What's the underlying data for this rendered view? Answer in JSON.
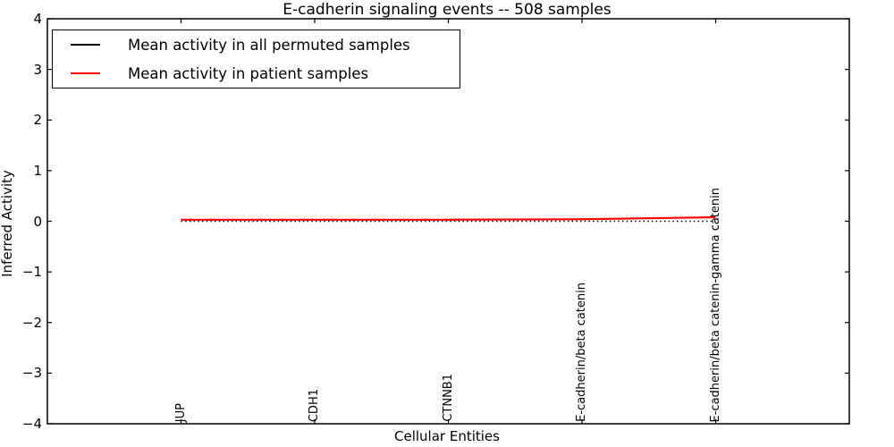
{
  "figure": {
    "background": "#ffffff",
    "axis_color": "#000000"
  },
  "chart_data": {
    "type": "line",
    "title": "E-cadherin signaling events -- 508 samples",
    "xlabel": "Cellular Entities",
    "ylabel": "Inferred Activity",
    "ylim": [
      -4,
      4
    ],
    "yticks": [
      4,
      3,
      2,
      1,
      0,
      -1,
      -2,
      -3,
      -4
    ],
    "grid": false,
    "legend_position": "upper left",
    "categories": [
      "JUP",
      "CDH1",
      "CTNNB1",
      "E-cadherin/beta catenin",
      "E-cadherin/beta catenin-gamma catenin"
    ],
    "series": [
      {
        "name": "Mean activity in all permuted samples",
        "color": "#000000",
        "style": "dotted",
        "values": [
          0.0,
          0.0,
          0.0,
          0.0,
          0.0
        ]
      },
      {
        "name": "Mean activity in patient samples",
        "color": "#ff0000",
        "style": "solid",
        "values": [
          0.03,
          0.03,
          0.03,
          0.04,
          0.08
        ]
      }
    ]
  }
}
